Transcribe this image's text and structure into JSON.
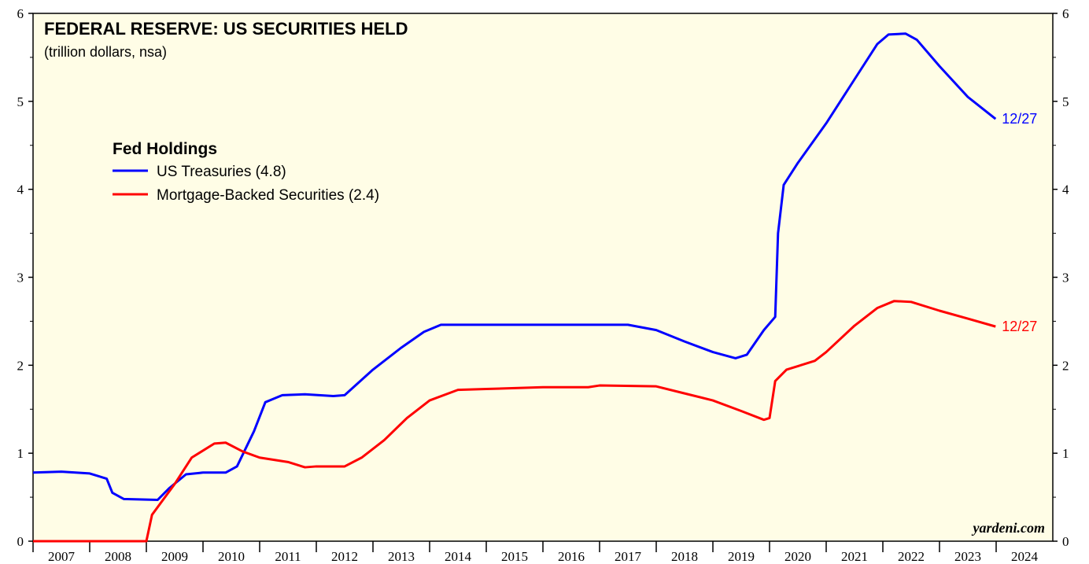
{
  "chart_data": {
    "type": "line",
    "title": "FEDERAL RESERVE: US SECURITIES HELD",
    "subtitle": "(trillion dollars, nsa)",
    "legend_title": "Fed Holdings",
    "watermark": "yardeni.com",
    "xlim": [
      2007,
      2025
    ],
    "xticks": [
      {
        "value": 2007,
        "label": "2007"
      },
      {
        "value": 2008,
        "label": "2008"
      },
      {
        "value": 2009,
        "label": "2009"
      },
      {
        "value": 2010,
        "label": "2010"
      },
      {
        "value": 2011,
        "label": "2011"
      },
      {
        "value": 2012,
        "label": "2012"
      },
      {
        "value": 2013,
        "label": "2013"
      },
      {
        "value": 2014,
        "label": "2014"
      },
      {
        "value": 2015,
        "label": "2015"
      },
      {
        "value": 2016,
        "label": "2016"
      },
      {
        "value": 2017,
        "label": "2017"
      },
      {
        "value": 2018,
        "label": "2018"
      },
      {
        "value": 2019,
        "label": "2019"
      },
      {
        "value": 2020,
        "label": "2020"
      },
      {
        "value": 2021,
        "label": "2021"
      },
      {
        "value": 2022,
        "label": "2022"
      },
      {
        "value": 2023,
        "label": "2023"
      },
      {
        "value": 2024,
        "label": "2024"
      }
    ],
    "ylim": [
      0,
      6
    ],
    "yticks": [
      0,
      1,
      2,
      3,
      4,
      5,
      6
    ],
    "series": [
      {
        "name": "US Treasuries (4.8)",
        "color": "#0000ff",
        "end_label": "12/27",
        "x": [
          2007.0,
          2007.5,
          2008.0,
          2008.3,
          2008.4,
          2008.6,
          2009.2,
          2009.4,
          2009.7,
          2010.0,
          2010.4,
          2010.6,
          2010.9,
          2011.1,
          2011.4,
          2011.8,
          2012.3,
          2012.5,
          2013.0,
          2013.5,
          2013.9,
          2014.2,
          2015.0,
          2016.0,
          2017.0,
          2017.5,
          2018.0,
          2018.5,
          2019.0,
          2019.4,
          2019.6,
          2019.9,
          2020.1,
          2020.15,
          2020.25,
          2020.5,
          2021.0,
          2021.5,
          2021.9,
          2022.1,
          2022.4,
          2022.6,
          2023.0,
          2023.5,
          2023.99
        ],
        "values": [
          0.78,
          0.79,
          0.77,
          0.71,
          0.55,
          0.48,
          0.47,
          0.6,
          0.76,
          0.78,
          0.78,
          0.85,
          1.25,
          1.58,
          1.66,
          1.67,
          1.65,
          1.66,
          1.95,
          2.2,
          2.38,
          2.46,
          2.46,
          2.46,
          2.46,
          2.46,
          2.4,
          2.27,
          2.15,
          2.08,
          2.12,
          2.4,
          2.55,
          3.5,
          4.05,
          4.3,
          4.75,
          5.25,
          5.65,
          5.76,
          5.77,
          5.7,
          5.4,
          5.05,
          4.8
        ]
      },
      {
        "name": "Mortgage-Backed Securities (2.4)",
        "color": "#ff0000",
        "end_label": "12/27",
        "x": [
          2007.0,
          2009.0,
          2009.1,
          2009.5,
          2009.8,
          2010.2,
          2010.4,
          2010.7,
          2011.0,
          2011.5,
          2011.8,
          2012.0,
          2012.5,
          2012.8,
          2013.2,
          2013.6,
          2014.0,
          2014.5,
          2015.0,
          2016.0,
          2016.8,
          2017.0,
          2018.0,
          2018.5,
          2019.0,
          2019.5,
          2019.9,
          2020.0,
          2020.1,
          2020.3,
          2020.8,
          2021.0,
          2021.5,
          2021.9,
          2022.2,
          2022.5,
          2023.0,
          2023.5,
          2023.99
        ],
        "values": [
          0,
          0,
          0.3,
          0.65,
          0.95,
          1.11,
          1.12,
          1.02,
          0.95,
          0.9,
          0.84,
          0.85,
          0.85,
          0.95,
          1.15,
          1.4,
          1.6,
          1.72,
          1.73,
          1.75,
          1.75,
          1.77,
          1.76,
          1.68,
          1.6,
          1.48,
          1.38,
          1.4,
          1.82,
          1.95,
          2.05,
          2.15,
          2.45,
          2.65,
          2.73,
          2.72,
          2.62,
          2.53,
          2.44
        ]
      }
    ]
  }
}
